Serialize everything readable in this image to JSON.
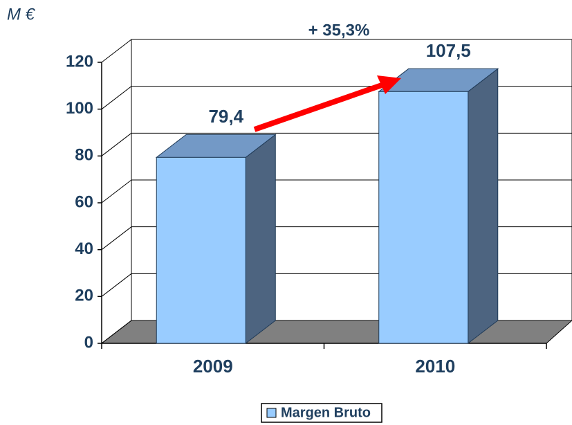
{
  "chart_data": {
    "type": "bar3d",
    "unit_label": "M €",
    "annotation": "+ 35,3%",
    "categories": [
      "2009",
      "2010"
    ],
    "series": [
      {
        "name": "Margen Bruto",
        "color": "#99ccff",
        "values": [
          79.4,
          107.5
        ],
        "value_labels": [
          "79,4",
          "107,5"
        ]
      }
    ],
    "ylim": [
      0,
      120
    ],
    "yticks": [
      0,
      20,
      40,
      60,
      80,
      100,
      120
    ],
    "grid": true,
    "legend": "bottom"
  }
}
